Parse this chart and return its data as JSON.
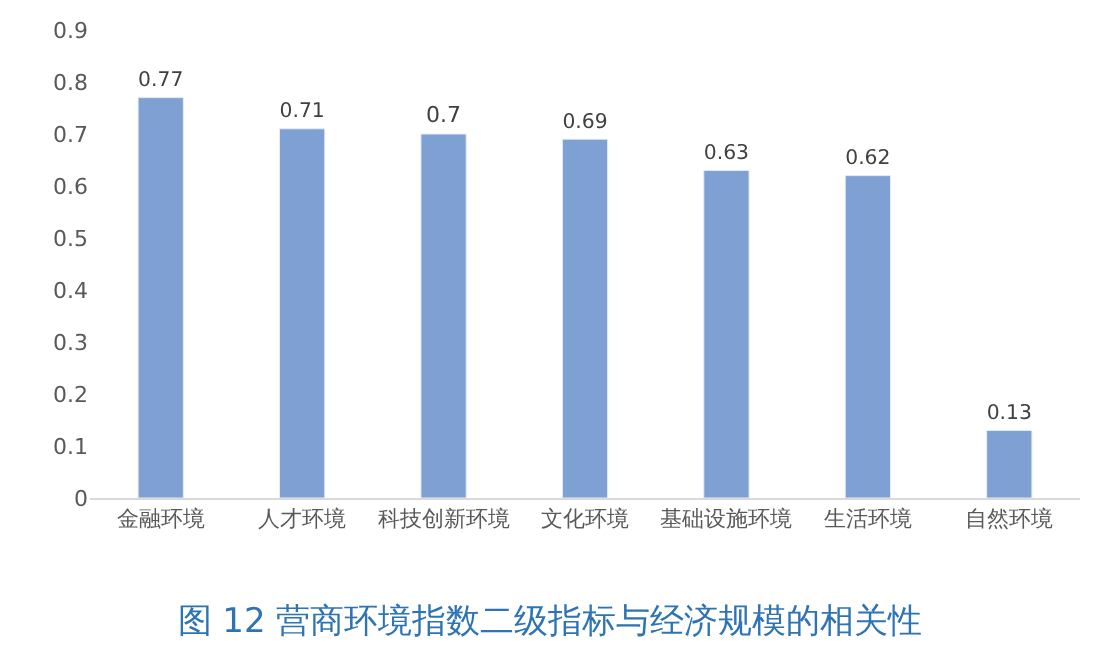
{
  "chart_data": {
    "type": "bar",
    "title": "图 12 营商环境指数二级指标与经济规模的相关性",
    "categories": [
      "金融环境",
      "人才环境",
      "科技创新环境",
      "文化环境",
      "基础设施环境",
      "生活环境",
      "自然环境"
    ],
    "values": [
      0.77,
      0.71,
      0.7,
      0.69,
      0.63,
      0.62,
      0.13
    ],
    "color": "#7fa0d2",
    "ylim": [
      0,
      0.9
    ],
    "yticks": [
      0,
      0.1,
      0.2,
      0.3,
      0.4,
      0.5,
      0.6,
      0.7,
      0.8,
      0.9
    ],
    "data_labels": true
  }
}
